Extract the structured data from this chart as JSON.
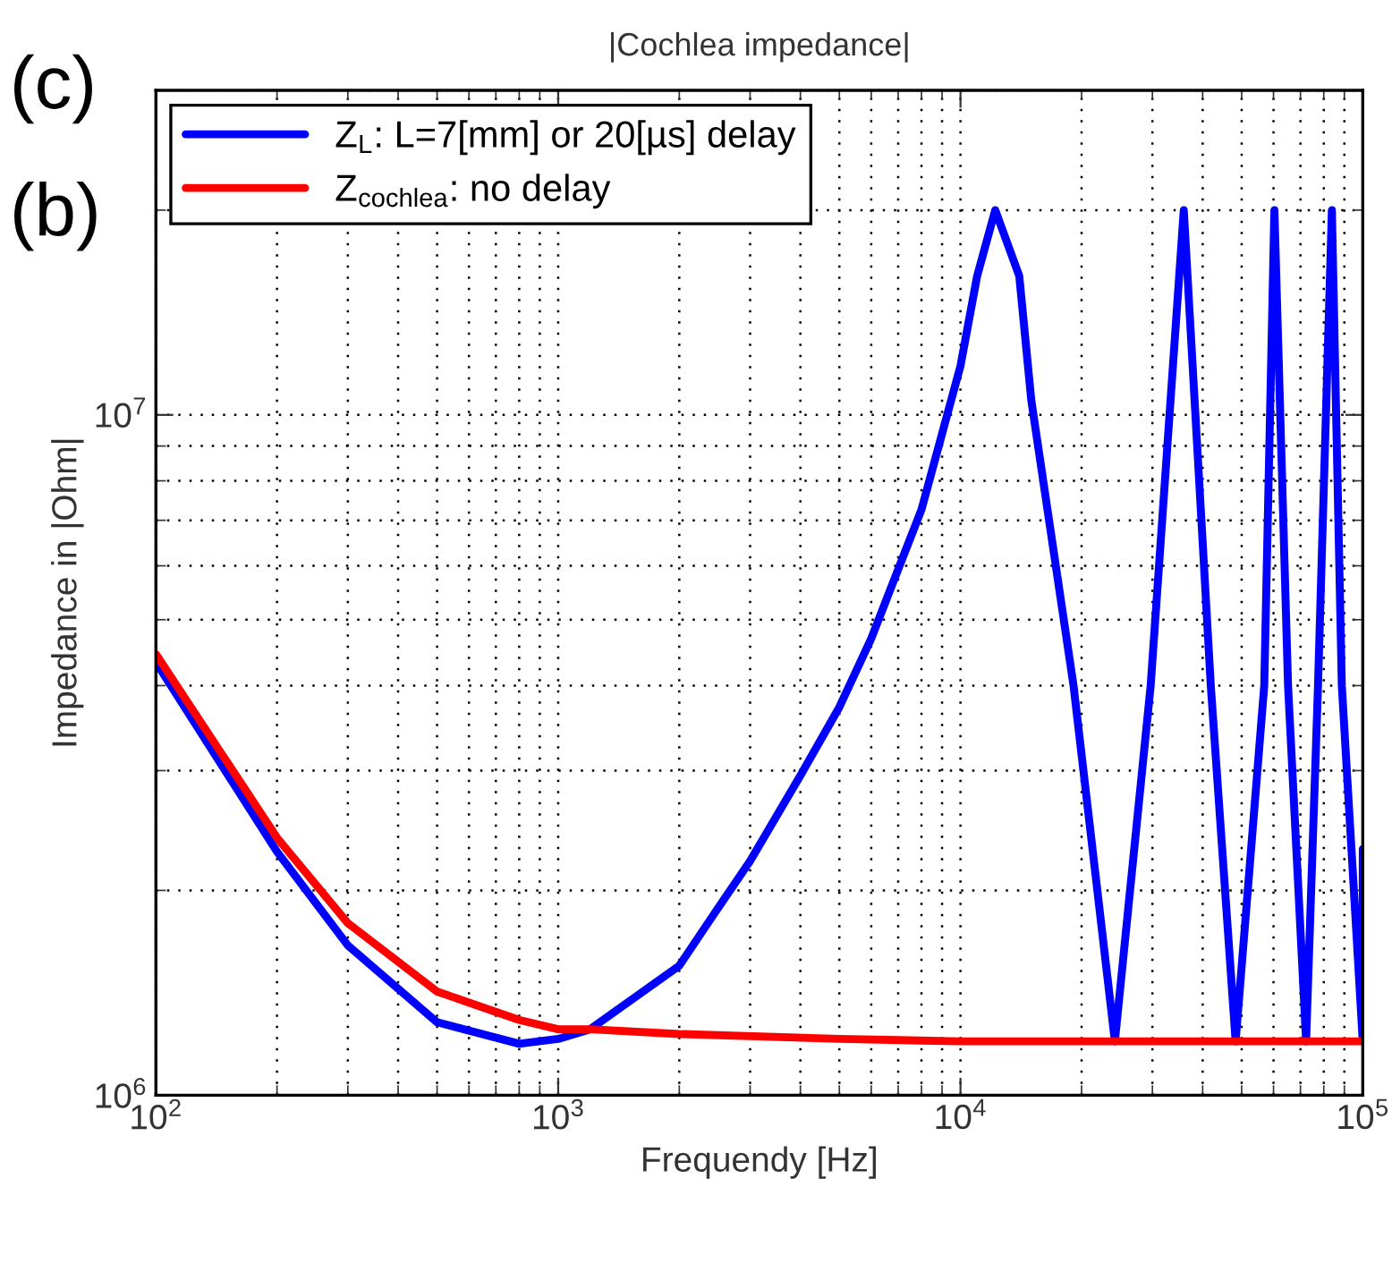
{
  "chart_data": {
    "type": "line",
    "title": "|Cochlea impedance|",
    "xlabel": "Frequendy [Hz]",
    "ylabel": "Impedance in |Ohm|",
    "log": "xy",
    "xlim": [
      100,
      100000
    ],
    "ylim": [
      1000000,
      30000000
    ],
    "xticks": [
      {
        "value": 100,
        "label": "10$^{2}$"
      },
      {
        "value": 1000,
        "label": "10$^{3}$"
      },
      {
        "value": 10000,
        "label": "10$^{4}$"
      },
      {
        "value": 100000,
        "label": "10$^{5}$"
      }
    ],
    "yticks": [
      {
        "value": 1000000,
        "label": "10$^{6}$"
      },
      {
        "value": 10000000,
        "label": "10$^{7}$"
      }
    ],
    "grid": true,
    "legend": "top left",
    "line_style": "solid",
    "marker": "none",
    "annotations": [
      "(c)",
      "(b)"
    ],
    "series": [
      {
        "name": "Z$_{L}$: L=7[mm] or 20[µs] delay",
        "color": "#0000ff",
        "x": [
          100,
          200,
          300,
          500,
          800,
          1000,
          1200,
          2000,
          2460,
          3000,
          4000,
          5000,
          6000,
          8000,
          10000,
          11000,
          12200,
          14000,
          15000,
          19100,
          24200,
          29700,
          35900,
          41900,
          48300,
          56900,
          60300,
          65200,
          72300,
          77400,
          83800,
          88700,
          100000,
          100000
        ],
        "values": [
          4330000,
          2280000,
          1660000,
          1280000,
          1190000,
          1210000,
          1250000,
          1550000,
          1860000,
          2210000,
          2950000,
          3720000,
          4690000,
          7260000,
          11800000,
          16000000,
          20000000,
          16000000,
          10500000,
          4000000,
          1200000,
          4000000,
          20000000,
          4000000,
          1200000,
          4000000,
          20000000,
          4000000,
          1200000,
          4000000,
          20000000,
          4000000,
          1200000,
          2300000
        ]
      },
      {
        "name": "Z$_{cochlea}$: no delay",
        "color": "#ff0000",
        "x": [
          100,
          200,
          300,
          500,
          800,
          1000,
          1200,
          2000,
          5000,
          10000,
          100000
        ],
        "values": [
          4450000,
          2390000,
          1790000,
          1420000,
          1290000,
          1250000,
          1250000,
          1230000,
          1210000,
          1200000,
          1200000
        ]
      }
    ]
  }
}
